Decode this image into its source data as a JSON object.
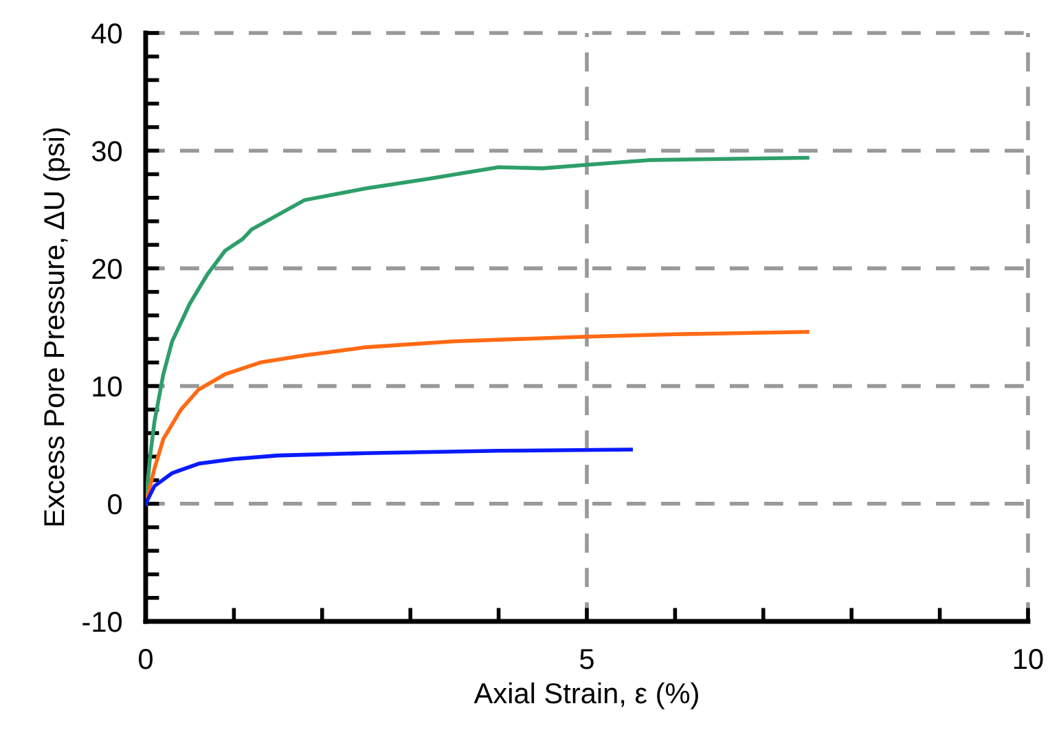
{
  "chart_data": {
    "type": "line",
    "xlabel": "Axial Strain, ε (%)",
    "ylabel": "Excess Pore Pressure, ΔU (psi)",
    "xlim": [
      0,
      10
    ],
    "ylim": [
      -10,
      40
    ],
    "xticks": [
      0,
      {
        "value": 1,
        "label": null
      },
      {
        "value": 2,
        "label": null
      },
      {
        "value": 3,
        "label": null
      },
      {
        "value": 4,
        "label": null
      },
      5,
      {
        "value": 6,
        "label": null
      },
      {
        "value": 7,
        "label": null
      },
      {
        "value": 8,
        "label": null
      },
      {
        "value": 9,
        "label": null
      },
      10
    ],
    "yticks": [
      -10,
      {
        "value": -8,
        "label": null
      },
      {
        "value": -6,
        "label": null
      },
      {
        "value": -4,
        "label": null
      },
      {
        "value": -2,
        "label": null
      },
      0,
      {
        "value": 2,
        "label": null
      },
      {
        "value": 4,
        "label": null
      },
      {
        "value": 6,
        "label": null
      },
      {
        "value": 8,
        "label": null
      },
      10,
      {
        "value": 12,
        "label": null
      },
      {
        "value": 14,
        "label": null
      },
      {
        "value": 16,
        "label": null
      },
      {
        "value": 18,
        "label": null
      },
      20,
      {
        "value": 22,
        "label": null
      },
      {
        "value": 24,
        "label": null
      },
      {
        "value": 26,
        "label": null
      },
      {
        "value": 28,
        "label": null
      },
      30,
      {
        "value": 32,
        "label": null
      },
      {
        "value": 34,
        "label": null
      },
      {
        "value": 36,
        "label": null
      },
      {
        "value": 38,
        "label": null
      },
      40
    ],
    "grid": true,
    "legend": false,
    "marker": "none",
    "line_style": "solid",
    "series": [
      {
        "color": "#2e9e6a",
        "x": [
          0,
          0.05,
          0.1,
          0.2,
          0.3,
          0.5,
          0.7,
          0.9,
          1.1,
          1.2,
          1.8,
          2.5,
          3.2,
          4.0,
          4.5,
          5.0,
          5.7,
          7.5
        ],
        "values": [
          0,
          4,
          7,
          11,
          13.8,
          17,
          19.5,
          21.5,
          22.5,
          23.3,
          25.8,
          26.8,
          27.6,
          28.6,
          28.5,
          28.8,
          29.2,
          29.4
        ]
      },
      {
        "color": "#ff6a13",
        "x": [
          0,
          0.1,
          0.2,
          0.4,
          0.6,
          0.9,
          1.3,
          1.8,
          2.5,
          3.5,
          5.0,
          6.0,
          7.5
        ],
        "values": [
          0,
          3,
          5.5,
          8,
          9.7,
          11,
          12,
          12.6,
          13.3,
          13.8,
          14.2,
          14.4,
          14.6
        ]
      },
      {
        "color": "#0a1aff",
        "x": [
          0,
          0.1,
          0.3,
          0.6,
          1.0,
          1.5,
          2.5,
          4.0,
          5.5
        ],
        "values": [
          0,
          1.5,
          2.6,
          3.4,
          3.8,
          4.1,
          4.3,
          4.5,
          4.6
        ]
      }
    ]
  }
}
